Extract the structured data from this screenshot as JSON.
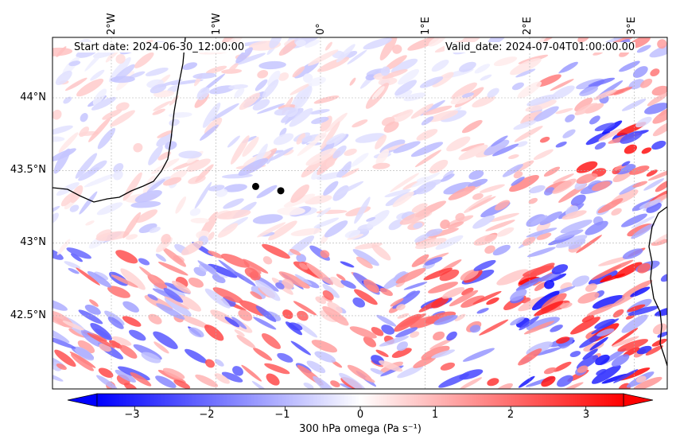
{
  "map": {
    "start_date": "Start date: 2024-06-30_12:00:00",
    "valid_date": "Valid_date: 2024-07-04T01:00:00.00",
    "lon_labels": [
      "2°W",
      "1°W",
      "0°",
      "1°E",
      "2°E",
      "3°E"
    ],
    "lat_labels": [
      "44°N",
      "43.5°N",
      "43°N",
      "42.5°N"
    ],
    "gridlines": true,
    "markers": [
      {
        "lon": -0.62,
        "lat": 43.39
      },
      {
        "lon": -0.38,
        "lat": 43.36
      }
    ]
  },
  "colorbar": {
    "label": "300 hPa omega (Pa s⁻¹)",
    "ticks": [
      "−3",
      "−2",
      "−1",
      "0",
      "1",
      "2",
      "3"
    ],
    "tick_values": [
      -3,
      -2,
      -1,
      0,
      1,
      2,
      3
    ],
    "range": [
      -3.5,
      3.5
    ],
    "extend": "both",
    "colors": {
      "negative": "#0000ff",
      "zero": "#ffffff",
      "positive": "#ff0000"
    }
  },
  "colors": {
    "coastline": "#000000",
    "gridline": "#b0b0b0",
    "marker": "#000000"
  }
}
